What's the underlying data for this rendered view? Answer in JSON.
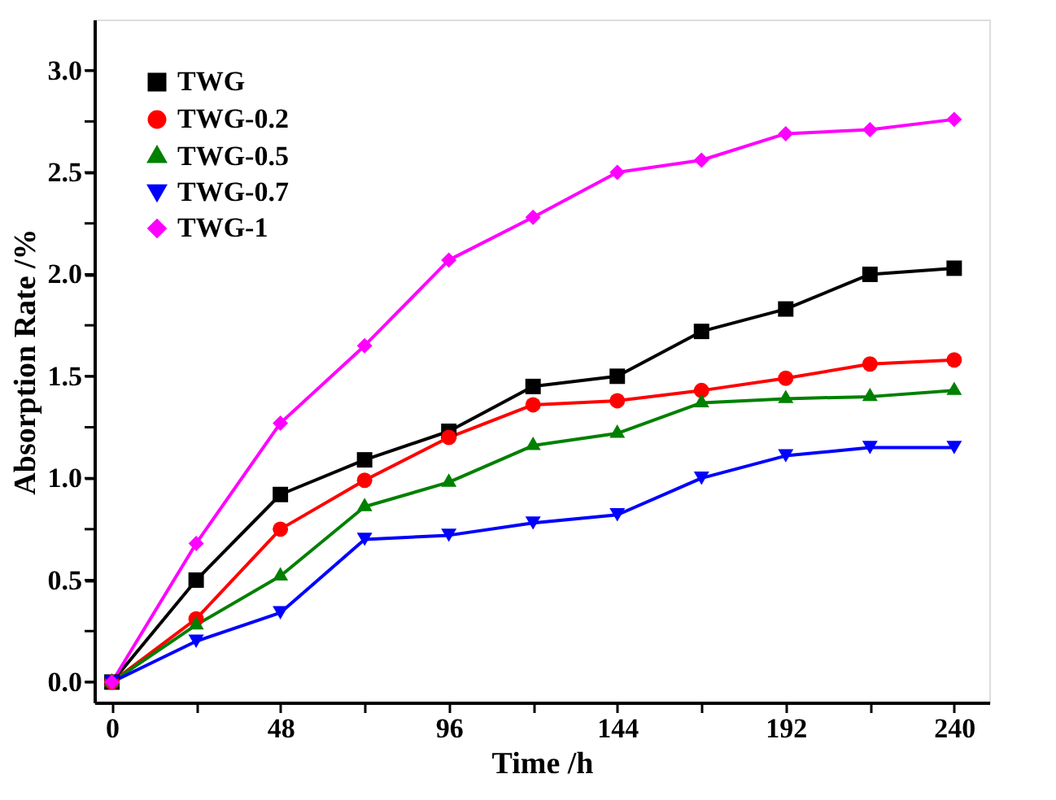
{
  "chart_data": {
    "type": "line",
    "xlabel": "Time /h",
    "ylabel": "Absorption Rate /%",
    "x": [
      0,
      24,
      48,
      72,
      96,
      120,
      144,
      168,
      192,
      216,
      240
    ],
    "series": [
      {
        "name": "TWG",
        "color": "#000000",
        "marker": "square",
        "values": [
          0,
          0.5,
          0.92,
          1.09,
          1.23,
          1.45,
          1.5,
          1.72,
          1.83,
          2.0,
          2.03
        ]
      },
      {
        "name": "TWG-0.2",
        "color": "#ff0000",
        "marker": "circle",
        "values": [
          0,
          0.31,
          0.75,
          0.99,
          1.2,
          1.36,
          1.38,
          1.43,
          1.49,
          1.56,
          1.58
        ]
      },
      {
        "name": "TWG-0.5",
        "color": "#008000",
        "marker": "triangle",
        "values": [
          0,
          0.28,
          0.52,
          0.86,
          0.98,
          1.16,
          1.22,
          1.37,
          1.39,
          1.4,
          1.43
        ]
      },
      {
        "name": "TWG-0.7",
        "color": "#0000ff",
        "marker": "triangle-down",
        "values": [
          0,
          0.2,
          0.34,
          0.7,
          0.72,
          0.78,
          0.82,
          1.0,
          1.11,
          1.15,
          1.15
        ]
      },
      {
        "name": "TWG-1",
        "color": "#ff00ff",
        "marker": "diamond",
        "values": [
          0,
          0.68,
          1.27,
          1.65,
          2.07,
          2.28,
          2.5,
          2.56,
          2.69,
          2.71,
          2.76
        ]
      }
    ],
    "xlim": [
      -5,
      250
    ],
    "xticks": [
      0,
      {
        "value": 24,
        "label": null
      },
      48,
      {
        "value": 72,
        "label": null
      },
      96,
      {
        "value": 120,
        "label": null
      },
      144,
      {
        "value": 168,
        "label": null
      },
      192,
      {
        "value": 216,
        "label": null
      },
      240
    ],
    "ylim": [
      -0.1,
      3.25
    ],
    "yticks": [
      {
        "value": 0,
        "label": "0.0"
      },
      {
        "value": 0.25,
        "label": null
      },
      0.5,
      {
        "value": 0.75,
        "label": null
      },
      {
        "value": 1,
        "label": "1.0"
      },
      {
        "value": 1.25,
        "label": null
      },
      1.5,
      {
        "value": 1.75,
        "label": null
      },
      {
        "value": 2,
        "label": "2.0"
      },
      {
        "value": 2.25,
        "label": null
      },
      2.5,
      {
        "value": 2.75,
        "label": null
      },
      {
        "value": 3,
        "label": "3.0"
      }
    ],
    "grid": false,
    "legend": "top left",
    "line_style": "solid"
  }
}
